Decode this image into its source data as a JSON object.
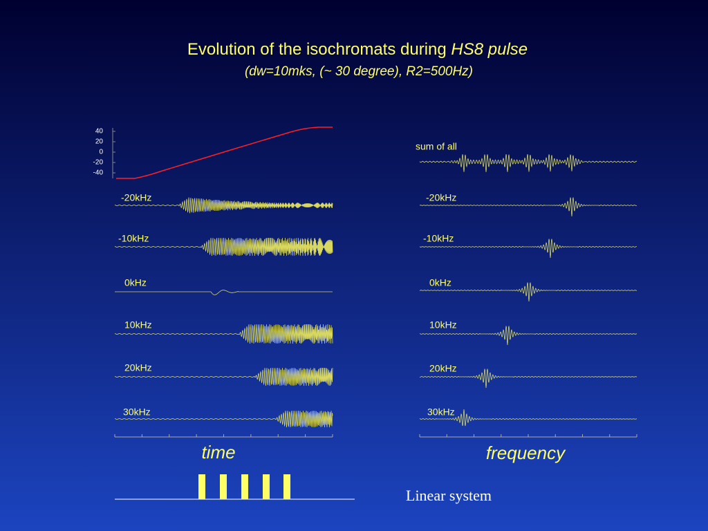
{
  "title": {
    "text": "Evolution of the isochromats during ",
    "emphasis": "HS8 pulse"
  },
  "subtitle": "(dw=10mks, (~ 30 degree), R2=500Hz)",
  "sweep": {
    "yticks": [
      40,
      20,
      0,
      -20,
      -40
    ]
  },
  "time_traces": [
    "-20kHz",
    "-10kHz",
    "0kHz",
    "10kHz",
    "20kHz",
    "30kHz"
  ],
  "frequency_traces": [
    "sum of all",
    "-20kHz",
    "-10kHz",
    "0kHz",
    "10kHz",
    "20kHz",
    "30kHz"
  ],
  "time_caption": "time",
  "frequency_caption": "frequency",
  "note": "Linear system"
}
